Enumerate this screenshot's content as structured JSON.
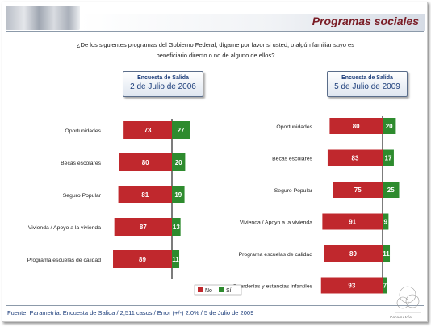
{
  "header": {
    "title": "Programas sociales"
  },
  "question": "¿De los siguientes programas del Gobierno Federal, dígame por favor si usted, o algún familiar suyo es beneficiario directo o no de alguno de ellos?",
  "colors": {
    "no": "#c0282d",
    "si": "#2e8b2e",
    "center_line": "#444444"
  },
  "legend": {
    "no": "No",
    "si": "Sí"
  },
  "footer": {
    "source": "Fuente: Parametría: Encuesta de Salida / 2,511 casos / Error (+/-) 2.0% / 5 de Julio de 2009",
    "logo_text": "Parametría"
  },
  "chart_data": [
    {
      "type": "bar",
      "orientation": "horizontal-diverging",
      "header_line1": "Encuesta de Salida",
      "header_line2": "2 de Julio de 2006",
      "categories": [
        "Oportunidades",
        "Becas escolares",
        "Seguro Popular",
        "Vivienda / Apoyo a la vivienda",
        "Programa escuelas de calidad"
      ],
      "series": [
        {
          "name": "No",
          "values": [
            73,
            80,
            81,
            87,
            89
          ]
        },
        {
          "name": "Sí",
          "values": [
            27,
            20,
            19,
            13,
            11
          ]
        }
      ]
    },
    {
      "type": "bar",
      "orientation": "horizontal-diverging",
      "header_line1": "Encuesta de Salida",
      "header_line2": "5 de Julio de 2009",
      "categories": [
        "Oportunidades",
        "Becas escolares",
        "Seguro Popular",
        "Vivienda / Apoyo a la vivienda",
        "Programa escuelas de calidad",
        "Guarderías y estancias infantiles"
      ],
      "series": [
        {
          "name": "No",
          "values": [
            80,
            83,
            75,
            91,
            89,
            93
          ]
        },
        {
          "name": "Sí",
          "values": [
            20,
            17,
            25,
            9,
            11,
            7
          ]
        }
      ]
    }
  ]
}
